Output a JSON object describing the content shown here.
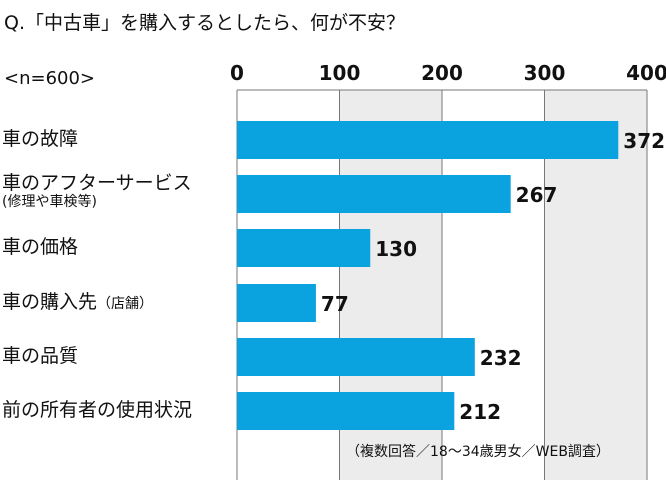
{
  "question": "Q.「中古車」を購入するとしたら、何が不安？",
  "sample_size": "<n=600>",
  "footnote": "（複数回答／18～34歳男女／WEB調査）",
  "colors": {
    "bar": "#0aa3e0",
    "band": "#ececec",
    "grid": "#777777"
  },
  "chart_data": {
    "type": "bar",
    "orientation": "horizontal",
    "xlim": [
      0,
      400
    ],
    "ticks": [
      0,
      100,
      200,
      300,
      400
    ],
    "categories": [
      {
        "label": "車の故障",
        "sub": "",
        "value": 372
      },
      {
        "label": "車のアフターサービス",
        "sub": "(修理や車検等)",
        "sub_position": "below",
        "value": 267
      },
      {
        "label": "車の価格",
        "sub": "",
        "value": 130
      },
      {
        "label": "車の購入先",
        "sub": "（店舗）",
        "sub_position": "inline",
        "value": 77
      },
      {
        "label": "車の品質",
        "sub": "",
        "value": 232
      },
      {
        "label": "前の所有者の使用状況",
        "sub": "",
        "value": 212
      }
    ]
  }
}
